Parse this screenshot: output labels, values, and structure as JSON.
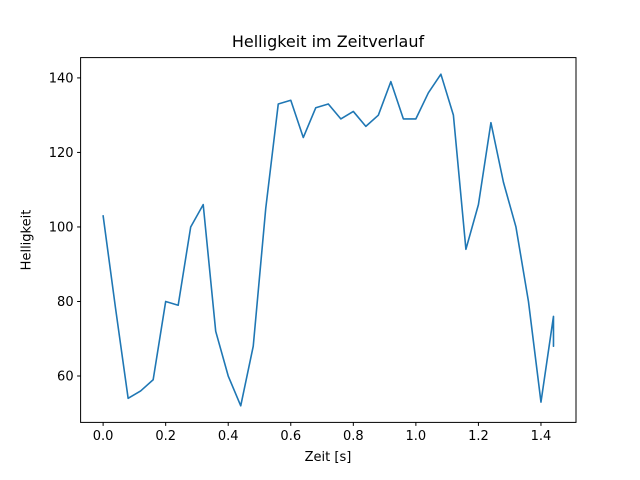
{
  "chart_data": {
    "type": "line",
    "title": "Helligkeit im Zeitverlauf",
    "xlabel": "Zeit [s]",
    "ylabel": "Helligkeit",
    "x": [
      0.0,
      0.04,
      0.08,
      0.12,
      0.16,
      0.2,
      0.24,
      0.28,
      0.32,
      0.36,
      0.4,
      0.44,
      0.48,
      0.52,
      0.56,
      0.6,
      0.64,
      0.68,
      0.72,
      0.76,
      0.8,
      0.84,
      0.88,
      0.92,
      0.96,
      1.0,
      1.04,
      1.08,
      1.12,
      1.16,
      1.2,
      1.24,
      1.28,
      1.32,
      1.36,
      1.4,
      1.44
    ],
    "values": [
      103,
      78,
      54,
      56,
      59,
      80,
      79,
      100,
      106,
      72,
      60,
      52,
      68,
      105,
      133,
      134,
      124,
      132,
      133,
      129,
      131,
      127,
      130,
      139,
      129,
      129,
      136,
      141,
      130,
      94,
      106,
      128,
      112,
      100,
      80,
      53,
      76
    ],
    "extra_point": {
      "x": 1.44,
      "y": 68
    },
    "xlim": [
      -0.072,
      1.512
    ],
    "ylim": [
      47.55,
      145.45
    ],
    "xticks": [
      0.0,
      0.2,
      0.4,
      0.6,
      0.8,
      1.0,
      1.2,
      1.4
    ],
    "xtick_labels": [
      "0.0",
      "0.2",
      "0.4",
      "0.6",
      "0.8",
      "1.0",
      "1.2",
      "1.4"
    ],
    "yticks": [
      60,
      80,
      100,
      120,
      140
    ],
    "ytick_labels": [
      "60",
      "80",
      "100",
      "120",
      "140"
    ],
    "line_color": "#1f77b4",
    "axes_color": "#000000",
    "grid": false,
    "legend": null
  }
}
